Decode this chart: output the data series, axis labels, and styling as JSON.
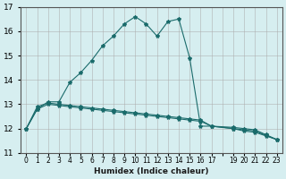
{
  "xlabel": "Humidex (Indice chaleur)",
  "ylabel": "",
  "background_color": "#d6eef0",
  "grid_color": "#aaaaaa",
  "line_color": "#1a6b6b",
  "xlim": [
    -0.5,
    23.5
  ],
  "ylim": [
    11,
    17
  ],
  "yticks": [
    11,
    12,
    13,
    14,
    15,
    16,
    17
  ],
  "xtick_labels": [
    "0",
    "1",
    "2",
    "3",
    "4",
    "5",
    "6",
    "7",
    "8",
    "9",
    "10",
    "11",
    "12",
    "13",
    "14",
    "15",
    "16",
    "17",
    "",
    "19",
    "20",
    "21",
    "22",
    "23"
  ],
  "series1_x": [
    0,
    1,
    2,
    3,
    4,
    5,
    6,
    7,
    8,
    9,
    10,
    11,
    12,
    13,
    14,
    15,
    16,
    17,
    19,
    20,
    21,
    22,
    23
  ],
  "series1_y": [
    12.0,
    12.8,
    13.1,
    13.1,
    13.9,
    14.3,
    14.8,
    15.4,
    15.8,
    16.3,
    16.6,
    16.3,
    15.8,
    16.4,
    16.5,
    14.9,
    12.1,
    12.1,
    12.0,
    11.9,
    11.85,
    11.7,
    11.55
  ],
  "series2_x": [
    0,
    1,
    2,
    3,
    4,
    5,
    6,
    7,
    8,
    9,
    10,
    11,
    12,
    13,
    14,
    15,
    16,
    17,
    19,
    20,
    21,
    22,
    23
  ],
  "series2_y": [
    12.0,
    12.9,
    13.05,
    13.0,
    12.95,
    12.9,
    12.85,
    12.8,
    12.75,
    12.7,
    12.65,
    12.6,
    12.55,
    12.5,
    12.45,
    12.4,
    12.35,
    12.1,
    12.05,
    12.0,
    11.95,
    11.75,
    11.55
  ],
  "series3_x": [
    0,
    1,
    2,
    3,
    4,
    5,
    6,
    7,
    8,
    9,
    10,
    11,
    12,
    13,
    14,
    15,
    16,
    17,
    19,
    20,
    21,
    22,
    23
  ],
  "series3_y": [
    12.0,
    12.8,
    13.0,
    12.95,
    12.9,
    12.85,
    12.8,
    12.75,
    12.7,
    12.65,
    12.6,
    12.55,
    12.5,
    12.45,
    12.4,
    12.35,
    12.3,
    12.1,
    12.0,
    11.95,
    11.9,
    11.72,
    11.55
  ]
}
